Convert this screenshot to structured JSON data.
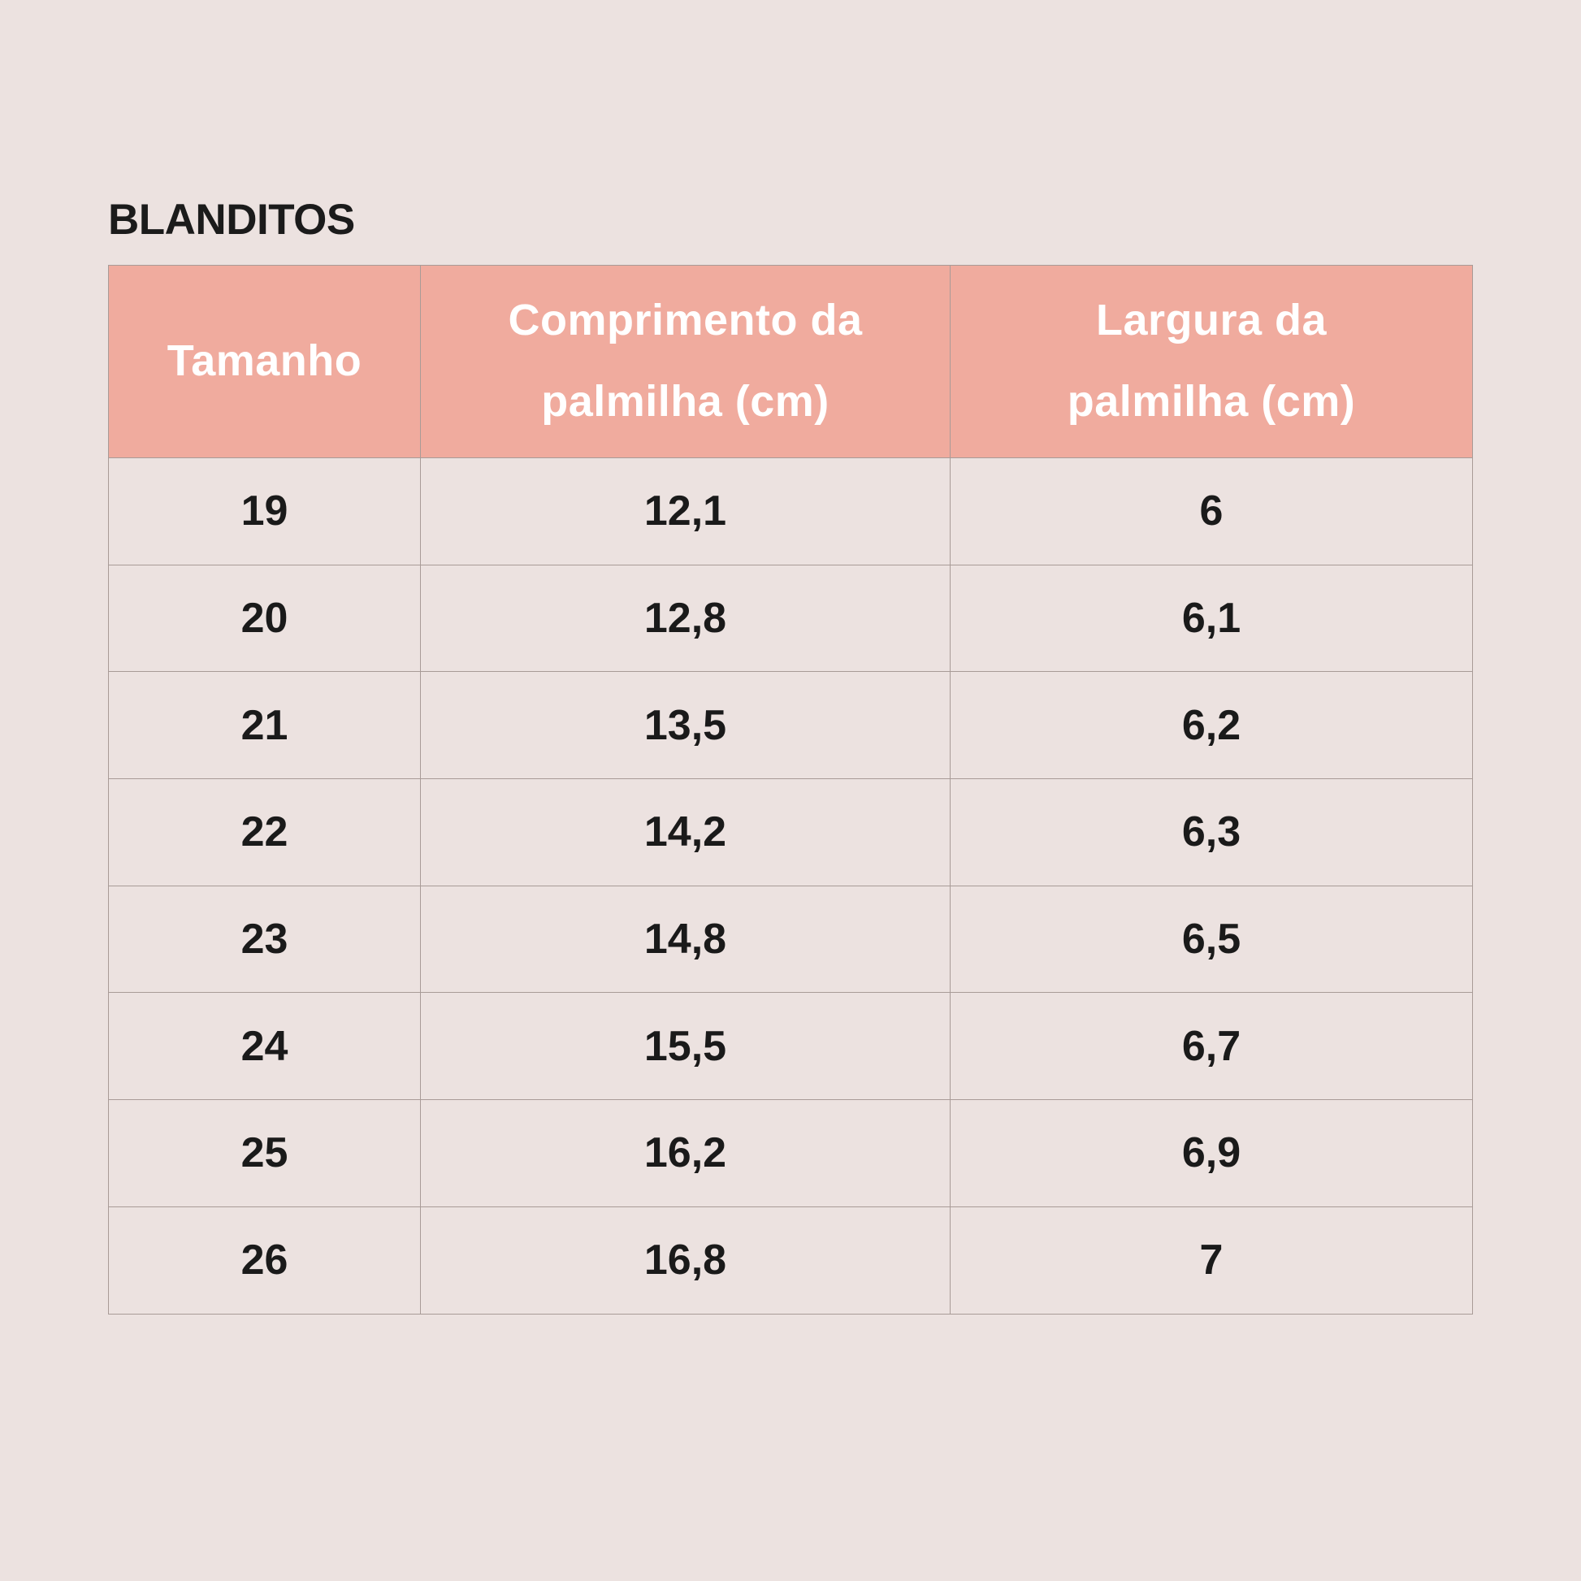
{
  "title": "BLANDITOS",
  "colors": {
    "page_background": "#ece2e0",
    "header_background": "#f0ab9e",
    "header_text": "#ffffff",
    "body_text": "#1a1a1a",
    "border": "#a89b97"
  },
  "table": {
    "headers": [
      "Tamanho",
      "Comprimento da\npalmilha (cm)",
      "Largura da\npalmilha (cm)"
    ],
    "rows": [
      {
        "size": "19",
        "length": "12,1",
        "width": "6"
      },
      {
        "size": "20",
        "length": "12,8",
        "width": "6,1"
      },
      {
        "size": "21",
        "length": "13,5",
        "width": "6,2"
      },
      {
        "size": "22",
        "length": "14,2",
        "width": "6,3"
      },
      {
        "size": "23",
        "length": "14,8",
        "width": "6,5"
      },
      {
        "size": "24",
        "length": "15,5",
        "width": "6,7"
      },
      {
        "size": "25",
        "length": "16,2",
        "width": "6,9"
      },
      {
        "size": "26",
        "length": "16,8",
        "width": "7"
      }
    ]
  }
}
